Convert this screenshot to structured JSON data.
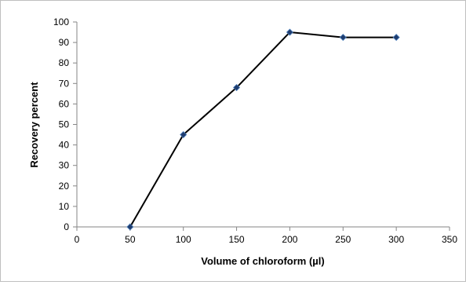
{
  "chart_data": {
    "type": "line",
    "title": "",
    "xlabel": "Volume of chloroform (µl)",
    "ylabel": "Recovery percent",
    "xlim": [
      0,
      350
    ],
    "ylim": [
      0,
      100
    ],
    "x_ticks": [
      0,
      50,
      100,
      150,
      200,
      250,
      300,
      350
    ],
    "y_ticks": [
      0,
      10,
      20,
      30,
      40,
      50,
      60,
      70,
      80,
      90,
      100
    ],
    "grid": false,
    "legend": "none",
    "series": [
      {
        "x": [
          50,
          100,
          150,
          200,
          250,
          300
        ],
        "values": [
          0,
          45,
          68,
          95,
          92.5,
          92.5
        ],
        "line_color": "#000000",
        "marker": "diamond",
        "marker_color": "#1f3c6e"
      }
    ]
  }
}
